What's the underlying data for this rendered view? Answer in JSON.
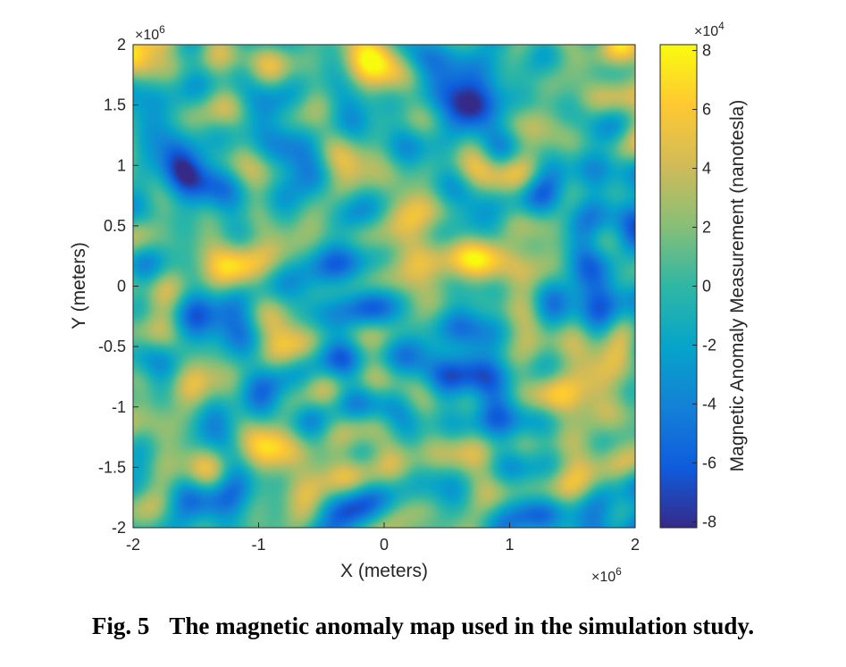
{
  "chart_data": {
    "type": "heatmap",
    "xlabel": "X (meters)",
    "ylabel": "Y (meters)",
    "xlim": [
      -2,
      2
    ],
    "ylim": [
      -2,
      2
    ],
    "x_multiplier": "×10^6",
    "y_multiplier": "×10^6",
    "x_ticks": [
      "-2",
      "-1",
      "0",
      "1",
      "2"
    ],
    "y_ticks": [
      "2",
      "1.5",
      "1",
      "0.5",
      "0",
      "-0.5",
      "-1",
      "-1.5",
      "-2"
    ],
    "grid": false,
    "colormap": "parula",
    "colormap_stops": [
      "#352a87",
      "#0f5cdd",
      "#1481d6",
      "#06a4ca",
      "#2eb7a4",
      "#87bf77",
      "#d1bb59",
      "#fec832",
      "#f9fb0e"
    ],
    "colorbar": {
      "label": "Magnetic Anomaly Measurement (nanotesla)",
      "multiplier": "×10^4",
      "range": [
        -8.2,
        8.2
      ],
      "ticks": [
        "8",
        "6",
        "4",
        "2",
        "0",
        "-2",
        "-4",
        "-6",
        "-8"
      ]
    },
    "field_description": "Random smooth magnetic anomaly field spanning roughly -8 to 8 ×10^4 nT, mostly near zero (cyan/green), with scattered yellow highs and dark blue lows"
  },
  "caption": {
    "number": "Fig. 5",
    "text": "The magnetic anomaly map used in the simulation study."
  }
}
